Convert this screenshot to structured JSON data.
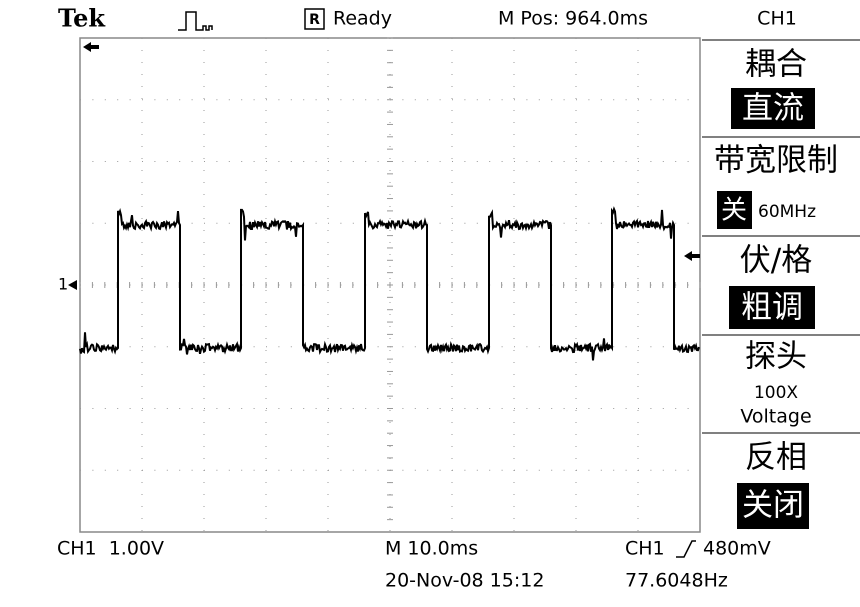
{
  "header": {
    "brand": "Tek",
    "status_icon": "R",
    "status": "Ready",
    "position": "M Pos: 964.0ms",
    "channel": "CH1"
  },
  "marker": "1",
  "menu": [
    {
      "label": "耦合",
      "value": "直流"
    },
    {
      "label": "带宽限制",
      "value_icon": "关",
      "value": "60MHz"
    },
    {
      "label": "伏/格",
      "value": "粗调"
    },
    {
      "label": "探头",
      "value": "100X",
      "value2": "Voltage"
    },
    {
      "label": "反相",
      "value": "关闭"
    }
  ],
  "footer": {
    "scale": "CH1  1.00V",
    "timebase": "M 10.0ms",
    "trigger_source": "CH1",
    "trigger_level": "480mV",
    "datetime": "20-Nov-08 15:12",
    "frequency": "77.6048Hz"
  }
}
